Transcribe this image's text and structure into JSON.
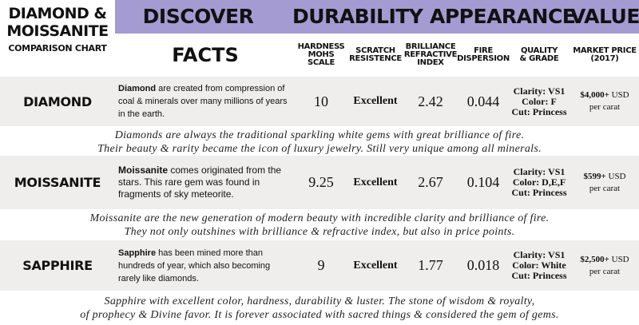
{
  "title": {
    "line1": "DIAMOND &",
    "line2": "MOISSANITE",
    "line3": "COMPARISON CHART"
  },
  "header_band": {
    "discover": "DISCOVER",
    "durability": "DURABILITY",
    "appearance": "APPEARANCE",
    "value": "VALUE"
  },
  "columns": {
    "facts": "FACTS",
    "hardness": [
      "HARDNESS",
      "MOHS SCALE"
    ],
    "scratch": [
      "SCRATCH",
      "RESISTENCE"
    ],
    "brilliance": [
      "BRILLIANCE",
      "REFRACTIVE",
      "INDEX"
    ],
    "fire": [
      "FIRE",
      "DISPERSION"
    ],
    "quality": [
      "QUALITY",
      "& GRADE"
    ],
    "price": [
      "MARKET PRICE",
      "(2017)"
    ]
  },
  "rows": [
    {
      "name": "DIAMOND",
      "desc_bold": "Diamond",
      "desc_rest": " are created from compression of coal & minerals over many millions of years in the earth.",
      "hardness": "10",
      "scratch": "Excellent",
      "brilliance": "2.42",
      "fire": "0.044",
      "clarity": "Clarity: VS1",
      "color": "Color: F",
      "cut": "Cut: Princess",
      "price": "$4,000+",
      "currency": " USD",
      "per": "per carat",
      "note1": "Diamonds are always the traditional sparkling white gems with great brilliance of fire.",
      "note2": "Their beauty & rarity became the icon of luxury jewelry. Still very unique among all minerals."
    },
    {
      "name": "MOISSANITE",
      "desc_bold": "Moissanite",
      "desc_rest": " comes originated from the stars. This rare gem was found in fragments of sky meteorite.",
      "hardness": "9.25",
      "scratch": "Excellent",
      "brilliance": "2.67",
      "fire": "0.104",
      "clarity": "Clarity: VS1",
      "color": "Color: D,E,F",
      "cut": "Cut: Princess",
      "price": "$599+",
      "currency": " USD",
      "per": "per carat",
      "note1": "Moissanite are the new generation of modern beauty with incredible clarity and brilliance of fire.",
      "note2": "They not only outshines with brilliance & refractive index, but also in price points."
    },
    {
      "name": "SAPPHIRE",
      "desc_bold": "Sapphire",
      "desc_rest": " has been mined more than hundreds of year, which also becoming rarely like diamonds.",
      "hardness": "9",
      "scratch": "Excellent",
      "brilliance": "1.77",
      "fire": "0.018",
      "clarity": "Clarity: VS1",
      "color": "Color: White",
      "cut": "Cut: Princess",
      "price": "$2,500+",
      "currency": " USD",
      "per": "per carat",
      "note1": "Sapphire with excellent color, hardness, durability & luster. The stone of wisdom & royalty,",
      "note2": "of prophecy & Divine favor. It is forever associated with sacred things & considered the gem of gems."
    }
  ],
  "colors": {
    "header_band": "#a49bd2",
    "row_background": "#efeeed"
  }
}
